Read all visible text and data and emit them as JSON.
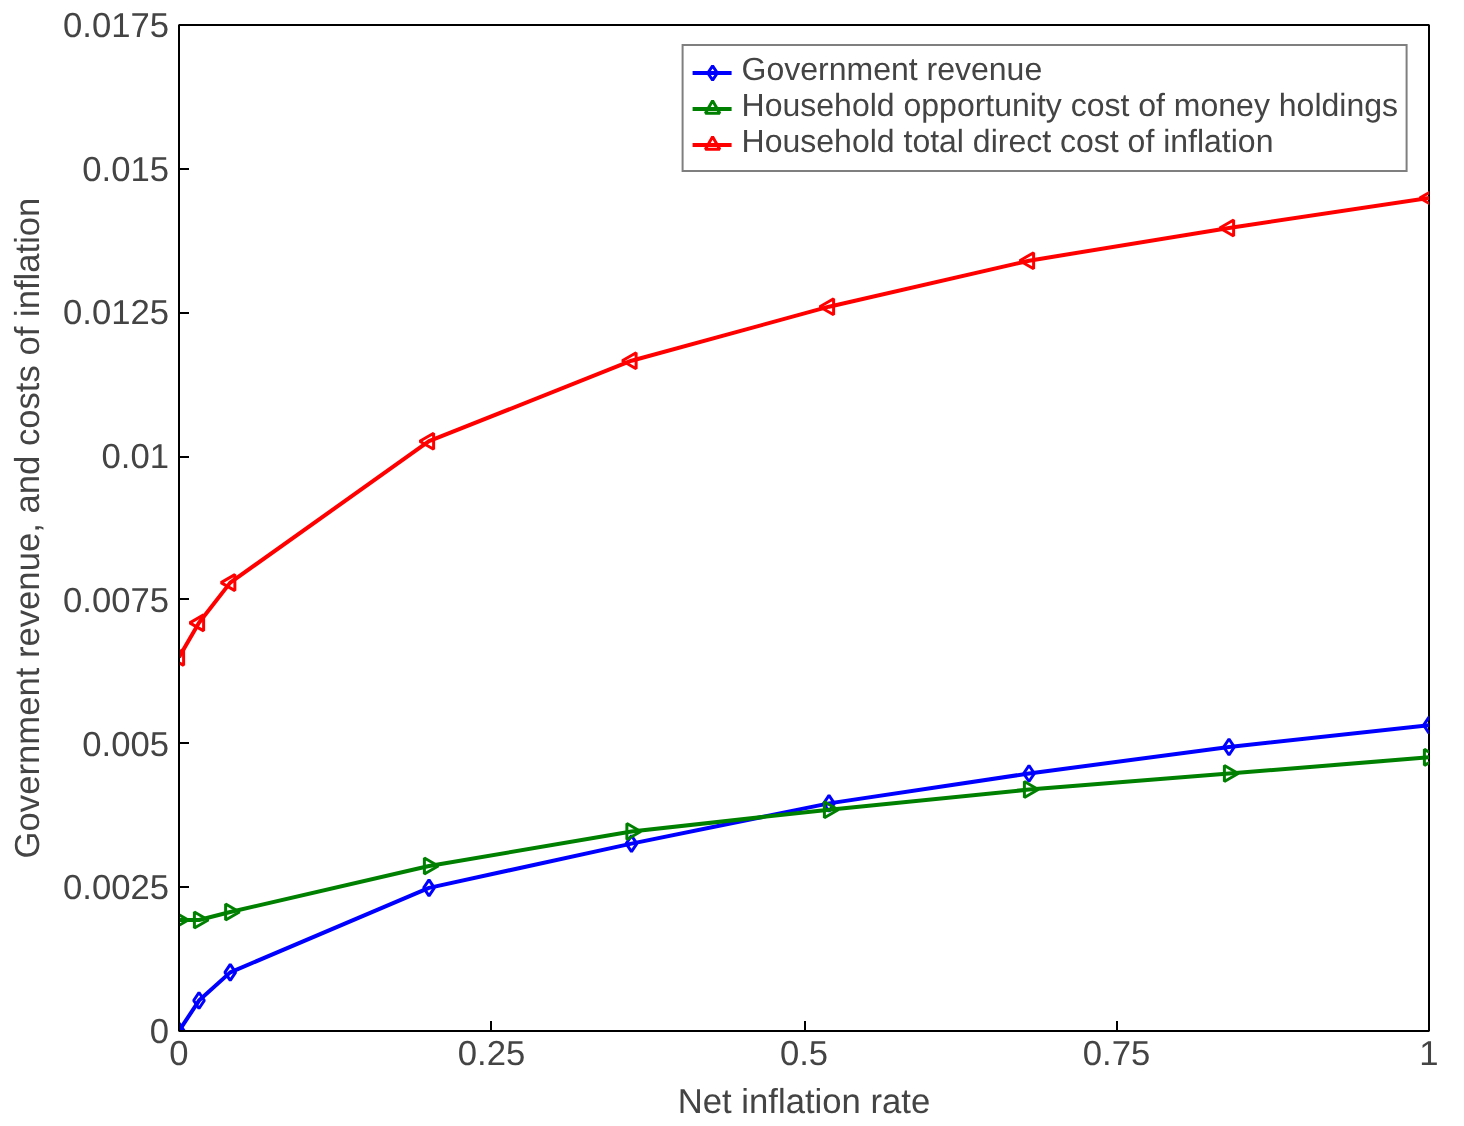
{
  "chart_data": {
    "type": "line",
    "xlabel": "Net inflation rate",
    "ylabel": "Government revenue, and costs of inflation",
    "x": [
      0,
      0.016,
      0.041,
      0.2,
      0.362,
      0.52,
      0.68,
      0.84,
      1.0
    ],
    "series": [
      {
        "name": "Government revenue",
        "color": "#0000ff",
        "marker": "diamond",
        "values": [
          0,
          0.00053,
          0.00102,
          0.00249,
          0.00326,
          0.00396,
          0.00448,
          0.00494,
          0.00532
        ]
      },
      {
        "name": "Household opportunity cost of money holdings",
        "color": "#008000",
        "marker": "triangle_right",
        "values": [
          0.00193,
          0.00193,
          0.00207,
          0.00287,
          0.00347,
          0.00385,
          0.0042,
          0.00448,
          0.00476
        ]
      },
      {
        "name": "Household total direct cost of inflation",
        "color": "#ff0000",
        "marker": "triangle_left",
        "values": [
          0.0065,
          0.0071,
          0.0078,
          0.01026,
          0.01166,
          0.0126,
          0.0134,
          0.01397,
          0.01449
        ]
      }
    ],
    "xlim": [
      0,
      1
    ],
    "ylim": [
      0,
      0.0175
    ],
    "xticks": [
      0,
      0.25,
      0.5,
      0.75,
      1
    ],
    "yticks": [
      0,
      0.0025,
      0.005,
      0.0075,
      0.01,
      0.0125,
      0.015,
      0.0175
    ],
    "grid": false,
    "legend": "top right",
    "line_style": "solid"
  }
}
